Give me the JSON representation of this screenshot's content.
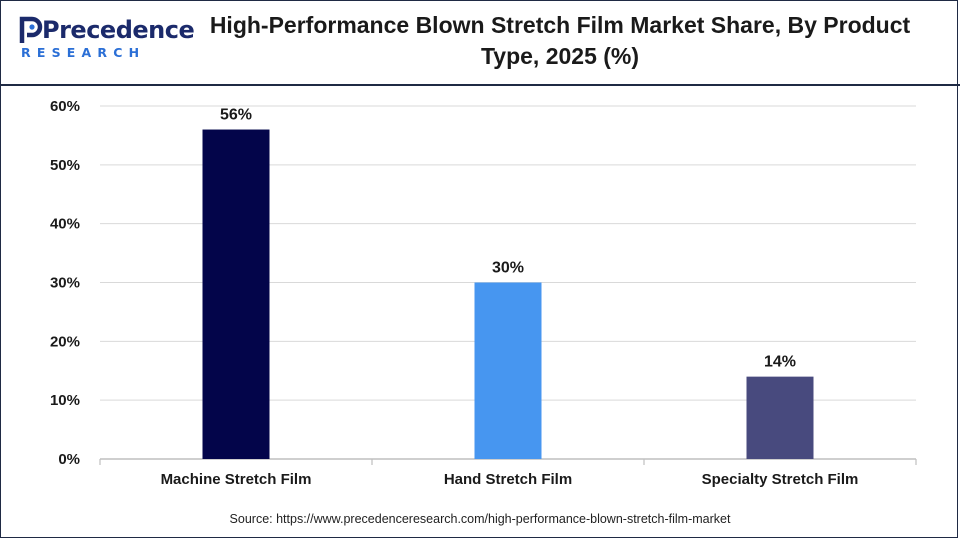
{
  "logo": {
    "word": "Precedence",
    "sub": "RESEARCH"
  },
  "title": "High-Performance Blown Stretch Film Market Share, By Product Type, 2025 (%)",
  "source": "Source: https://www.precedenceresearch.com/high-performance-blown-stretch-film-market",
  "colors": {
    "machine": "#03054a",
    "hand": "#4796f0",
    "specialty": "#484a7e",
    "grid": "#d9d9d9",
    "axis": "#bfbfbf"
  },
  "chart_data": {
    "type": "bar",
    "categories": [
      "Machine Stretch Film",
      "Hand Stretch Film",
      "Specialty Stretch Film"
    ],
    "values": [
      56,
      30,
      14
    ],
    "value_labels": [
      "56%",
      "30%",
      "14%"
    ],
    "ylim": [
      0,
      60
    ],
    "yticks": [
      0,
      10,
      20,
      30,
      40,
      50,
      60
    ],
    "ytick_labels": [
      "0%",
      "10%",
      "20%",
      "30%",
      "40%",
      "50%",
      "60%"
    ],
    "grid": true,
    "legend": "none",
    "xlabel": "",
    "ylabel": ""
  }
}
